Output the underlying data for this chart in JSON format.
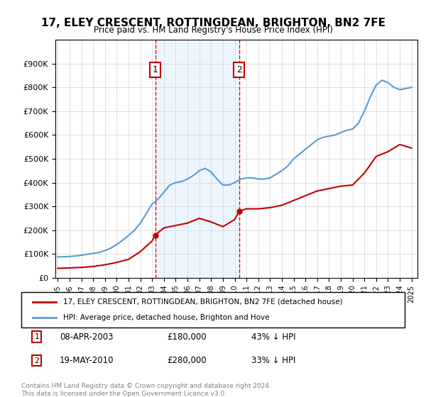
{
  "title": "17, ELEY CRESCENT, ROTTINGDEAN, BRIGHTON, BN2 7FE",
  "subtitle": "Price paid vs. HM Land Registry's House Price Index (HPI)",
  "footer": "Contains HM Land Registry data © Crown copyright and database right 2024.\nThis data is licensed under the Open Government Licence v3.0.",
  "legend_line1": "17, ELEY CRESCENT, ROTTINGDEAN, BRIGHTON, BN2 7FE (detached house)",
  "legend_line2": "HPI: Average price, detached house, Brighton and Hove",
  "transaction1_label": "1",
  "transaction1_date": "08-APR-2003",
  "transaction1_price": "£180,000",
  "transaction1_note": "43% ↓ HPI",
  "transaction2_label": "2",
  "transaction2_date": "19-MAY-2010",
  "transaction2_price": "£280,000",
  "transaction2_note": "33% ↓ HPI",
  "hpi_color": "#5b9bd5",
  "price_color": "#c00000",
  "dashed_line_color": "#ff0000",
  "marker_box_color": "#c00000",
  "shaded_region_color": "#ddeeff",
  "background_color": "#ffffff",
  "ylim": [
    0,
    1000000
  ],
  "xlim_start": 1995,
  "xlim_end": 2026,
  "transaction1_x": 2003.27,
  "transaction2_x": 2010.38,
  "transaction1_y": 180000,
  "transaction2_y": 280000
}
